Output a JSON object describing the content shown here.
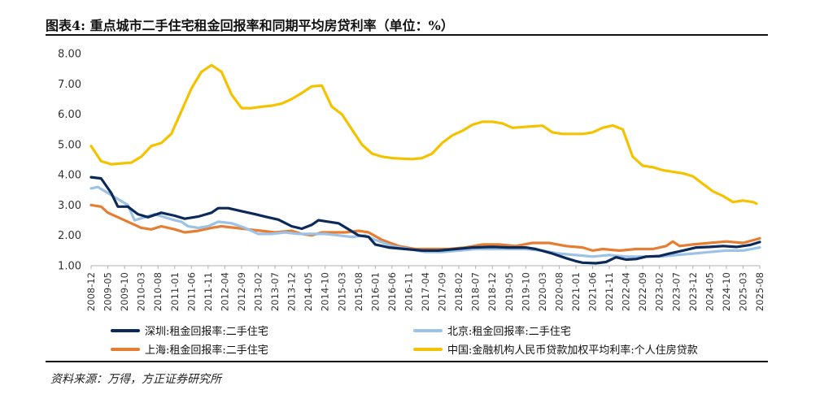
{
  "title": "图表4: 重点城市二手住宅租金回报率和同期平均房贷利率（单位：%）",
  "source": "资料来源：万得，方正证券研究所",
  "chart_data": {
    "type": "line",
    "title": "图表4: 重点城市二手住宅租金回报率和同期平均房贷利率（单位：%）",
    "xlabel": "",
    "ylabel": "",
    "ylim": [
      1.0,
      8.0
    ],
    "yticks": [
      "1.00",
      "2.00",
      "3.00",
      "4.00",
      "5.00",
      "6.00",
      "7.00",
      "8.00"
    ],
    "x_range": [
      "2008-12",
      "2025-08"
    ],
    "x_tick_labels": [
      "2008-12",
      "2009-05",
      "2009-10",
      "2010-03",
      "2010-08",
      "2011-01",
      "2011-06",
      "2011-11",
      "2012-04",
      "2012-09",
      "2013-02",
      "2013-07",
      "2013-12",
      "2014-05",
      "2014-10",
      "2015-03",
      "2015-08",
      "2016-01",
      "2016-06",
      "2016-11",
      "2017-04",
      "2017-09",
      "2018-02",
      "2018-07",
      "2018-12",
      "2019-05",
      "2019-10",
      "2020-03",
      "2020-08",
      "2021-01",
      "2021-06",
      "2021-11",
      "2022-04",
      "2022-09",
      "2023-02",
      "2023-07",
      "2023-12",
      "2024-05",
      "2024-10",
      "2025-03",
      "2025-08"
    ],
    "grid": false,
    "legend_position": "bottom",
    "series": [
      {
        "name": "深圳:租金回报率:二手住宅",
        "color": "#0b2a5a",
        "points": [
          [
            "2008-12",
            3.92
          ],
          [
            "2009-03",
            3.88
          ],
          [
            "2009-06",
            3.4
          ],
          [
            "2009-08",
            2.95
          ],
          [
            "2009-11",
            2.95
          ],
          [
            "2010-02",
            2.7
          ],
          [
            "2010-05",
            2.6
          ],
          [
            "2010-09",
            2.75
          ],
          [
            "2011-01",
            2.65
          ],
          [
            "2011-04",
            2.55
          ],
          [
            "2011-08",
            2.62
          ],
          [
            "2011-12",
            2.75
          ],
          [
            "2012-02",
            2.9
          ],
          [
            "2012-05",
            2.9
          ],
          [
            "2012-09",
            2.8
          ],
          [
            "2013-01",
            2.7
          ],
          [
            "2013-04",
            2.62
          ],
          [
            "2013-08",
            2.52
          ],
          [
            "2013-12",
            2.3
          ],
          [
            "2014-03",
            2.22
          ],
          [
            "2014-06",
            2.35
          ],
          [
            "2014-08",
            2.5
          ],
          [
            "2014-11",
            2.45
          ],
          [
            "2015-02",
            2.4
          ],
          [
            "2015-05",
            2.2
          ],
          [
            "2015-08",
            2.0
          ],
          [
            "2015-11",
            1.95
          ],
          [
            "2016-01",
            1.7
          ],
          [
            "2016-05",
            1.6
          ],
          [
            "2016-10",
            1.55
          ],
          [
            "2017-03",
            1.5
          ],
          [
            "2017-08",
            1.5
          ],
          [
            "2018-01",
            1.55
          ],
          [
            "2018-06",
            1.6
          ],
          [
            "2018-12",
            1.62
          ],
          [
            "2019-05",
            1.6
          ],
          [
            "2019-10",
            1.6
          ],
          [
            "2020-01",
            1.55
          ],
          [
            "2020-06",
            1.4
          ],
          [
            "2020-10",
            1.25
          ],
          [
            "2021-01",
            1.15
          ],
          [
            "2021-03",
            1.1
          ],
          [
            "2021-07",
            1.08
          ],
          [
            "2021-10",
            1.12
          ],
          [
            "2022-01",
            1.28
          ],
          [
            "2022-04",
            1.2
          ],
          [
            "2022-07",
            1.22
          ],
          [
            "2022-10",
            1.3
          ],
          [
            "2023-02",
            1.32
          ],
          [
            "2023-05",
            1.4
          ],
          [
            "2023-09",
            1.5
          ],
          [
            "2024-01",
            1.6
          ],
          [
            "2024-05",
            1.62
          ],
          [
            "2024-09",
            1.65
          ],
          [
            "2025-01",
            1.62
          ],
          [
            "2025-05",
            1.68
          ],
          [
            "2025-08",
            1.78
          ]
        ]
      },
      {
        "name": "北京:租金回报率:二手住宅",
        "color": "#9cc2e5",
        "points": [
          [
            "2008-12",
            3.55
          ],
          [
            "2009-02",
            3.6
          ],
          [
            "2009-05",
            3.4
          ],
          [
            "2009-08",
            3.2
          ],
          [
            "2009-11",
            3.0
          ],
          [
            "2010-01",
            2.5
          ],
          [
            "2010-04",
            2.6
          ],
          [
            "2010-07",
            2.7
          ],
          [
            "2010-10",
            2.6
          ],
          [
            "2011-01",
            2.5
          ],
          [
            "2011-03",
            2.45
          ],
          [
            "2011-05",
            2.3
          ],
          [
            "2011-08",
            2.25
          ],
          [
            "2011-11",
            2.3
          ],
          [
            "2012-02",
            2.45
          ],
          [
            "2012-06",
            2.4
          ],
          [
            "2012-10",
            2.25
          ],
          [
            "2013-02",
            2.05
          ],
          [
            "2013-06",
            2.05
          ],
          [
            "2013-10",
            2.1
          ],
          [
            "2014-02",
            2.05
          ],
          [
            "2014-06",
            2.05
          ],
          [
            "2014-10",
            2.05
          ],
          [
            "2015-02",
            2.0
          ],
          [
            "2015-06",
            1.95
          ],
          [
            "2015-10",
            2.0
          ],
          [
            "2016-01",
            1.85
          ],
          [
            "2016-06",
            1.65
          ],
          [
            "2016-11",
            1.55
          ],
          [
            "2017-04",
            1.45
          ],
          [
            "2017-09",
            1.45
          ],
          [
            "2018-02",
            1.5
          ],
          [
            "2018-07",
            1.55
          ],
          [
            "2018-12",
            1.55
          ],
          [
            "2019-05",
            1.55
          ],
          [
            "2019-10",
            1.55
          ],
          [
            "2020-03",
            1.5
          ],
          [
            "2020-08",
            1.4
          ],
          [
            "2021-01",
            1.35
          ],
          [
            "2021-06",
            1.3
          ],
          [
            "2021-11",
            1.35
          ],
          [
            "2022-04",
            1.3
          ],
          [
            "2022-09",
            1.3
          ],
          [
            "2023-02",
            1.3
          ],
          [
            "2023-07",
            1.35
          ],
          [
            "2023-12",
            1.4
          ],
          [
            "2024-05",
            1.45
          ],
          [
            "2024-10",
            1.5
          ],
          [
            "2025-03",
            1.5
          ],
          [
            "2025-08",
            1.6
          ]
        ]
      },
      {
        "name": "上海:租金回报率:二手住宅",
        "color": "#e57d32",
        "points": [
          [
            "2008-12",
            3.0
          ],
          [
            "2009-03",
            2.95
          ],
          [
            "2009-05",
            2.75
          ],
          [
            "2009-08",
            2.6
          ],
          [
            "2009-11",
            2.45
          ],
          [
            "2010-03",
            2.25
          ],
          [
            "2010-06",
            2.2
          ],
          [
            "2010-09",
            2.3
          ],
          [
            "2011-01",
            2.2
          ],
          [
            "2011-04",
            2.1
          ],
          [
            "2011-08",
            2.15
          ],
          [
            "2011-12",
            2.25
          ],
          [
            "2012-03",
            2.3
          ],
          [
            "2012-07",
            2.25
          ],
          [
            "2012-11",
            2.2
          ],
          [
            "2013-03",
            2.15
          ],
          [
            "2013-07",
            2.1
          ],
          [
            "2013-12",
            2.15
          ],
          [
            "2014-03",
            2.05
          ],
          [
            "2014-06",
            2.0
          ],
          [
            "2014-09",
            2.1
          ],
          [
            "2014-12",
            2.1
          ],
          [
            "2015-04",
            2.1
          ],
          [
            "2015-08",
            2.15
          ],
          [
            "2015-11",
            2.1
          ],
          [
            "2016-03",
            1.85
          ],
          [
            "2016-08",
            1.65
          ],
          [
            "2017-01",
            1.55
          ],
          [
            "2017-06",
            1.55
          ],
          [
            "2017-11",
            1.55
          ],
          [
            "2018-04",
            1.6
          ],
          [
            "2018-09",
            1.7
          ],
          [
            "2019-02",
            1.7
          ],
          [
            "2019-07",
            1.65
          ],
          [
            "2019-12",
            1.75
          ],
          [
            "2020-05",
            1.75
          ],
          [
            "2020-10",
            1.65
          ],
          [
            "2021-03",
            1.6
          ],
          [
            "2021-06",
            1.5
          ],
          [
            "2021-09",
            1.55
          ],
          [
            "2022-02",
            1.5
          ],
          [
            "2022-07",
            1.55
          ],
          [
            "2022-12",
            1.55
          ],
          [
            "2023-04",
            1.65
          ],
          [
            "2023-06",
            1.8
          ],
          [
            "2023-08",
            1.65
          ],
          [
            "2023-12",
            1.7
          ],
          [
            "2024-05",
            1.75
          ],
          [
            "2024-10",
            1.8
          ],
          [
            "2025-03",
            1.75
          ],
          [
            "2025-08",
            1.9
          ]
        ]
      },
      {
        "name": "中国:金融机构人民币贷款加权平均利率:个人住房贷款",
        "color": "#f5c200",
        "points": [
          [
            "2008-12",
            4.95
          ],
          [
            "2009-03",
            4.45
          ],
          [
            "2009-06",
            4.35
          ],
          [
            "2009-12",
            4.4
          ],
          [
            "2010-03",
            4.6
          ],
          [
            "2010-06",
            4.95
          ],
          [
            "2010-09",
            5.05
          ],
          [
            "2010-12",
            5.35
          ],
          [
            "2011-03",
            6.1
          ],
          [
            "2011-06",
            6.85
          ],
          [
            "2011-09",
            7.4
          ],
          [
            "2011-12",
            7.62
          ],
          [
            "2012-03",
            7.4
          ],
          [
            "2012-06",
            6.65
          ],
          [
            "2012-09",
            6.2
          ],
          [
            "2012-12",
            6.2
          ],
          [
            "2013-03",
            6.25
          ],
          [
            "2013-06",
            6.28
          ],
          [
            "2013-09",
            6.35
          ],
          [
            "2013-12",
            6.5
          ],
          [
            "2014-03",
            6.7
          ],
          [
            "2014-06",
            6.92
          ],
          [
            "2014-09",
            6.95
          ],
          [
            "2014-12",
            6.25
          ],
          [
            "2015-03",
            6.0
          ],
          [
            "2015-06",
            5.5
          ],
          [
            "2015-09",
            5.0
          ],
          [
            "2015-12",
            4.7
          ],
          [
            "2016-03",
            4.6
          ],
          [
            "2016-06",
            4.55
          ],
          [
            "2016-12",
            4.52
          ],
          [
            "2017-03",
            4.55
          ],
          [
            "2017-06",
            4.7
          ],
          [
            "2017-09",
            5.05
          ],
          [
            "2017-12",
            5.3
          ],
          [
            "2018-03",
            5.45
          ],
          [
            "2018-06",
            5.65
          ],
          [
            "2018-09",
            5.75
          ],
          [
            "2018-12",
            5.75
          ],
          [
            "2019-03",
            5.7
          ],
          [
            "2019-06",
            5.55
          ],
          [
            "2019-12",
            5.6
          ],
          [
            "2020-03",
            5.62
          ],
          [
            "2020-06",
            5.4
          ],
          [
            "2020-09",
            5.35
          ],
          [
            "2020-12",
            5.35
          ],
          [
            "2021-03",
            5.35
          ],
          [
            "2021-06",
            5.4
          ],
          [
            "2021-09",
            5.55
          ],
          [
            "2021-12",
            5.63
          ],
          [
            "2022-03",
            5.5
          ],
          [
            "2022-06",
            4.6
          ],
          [
            "2022-09",
            4.3
          ],
          [
            "2022-12",
            4.25
          ],
          [
            "2023-03",
            4.15
          ],
          [
            "2023-06",
            4.1
          ],
          [
            "2023-09",
            4.05
          ],
          [
            "2023-12",
            3.95
          ],
          [
            "2024-03",
            3.7
          ],
          [
            "2024-06",
            3.45
          ],
          [
            "2024-09",
            3.3
          ],
          [
            "2024-12",
            3.1
          ],
          [
            "2025-03",
            3.15
          ],
          [
            "2025-06",
            3.1
          ],
          [
            "2025-07",
            3.05
          ]
        ]
      }
    ]
  }
}
